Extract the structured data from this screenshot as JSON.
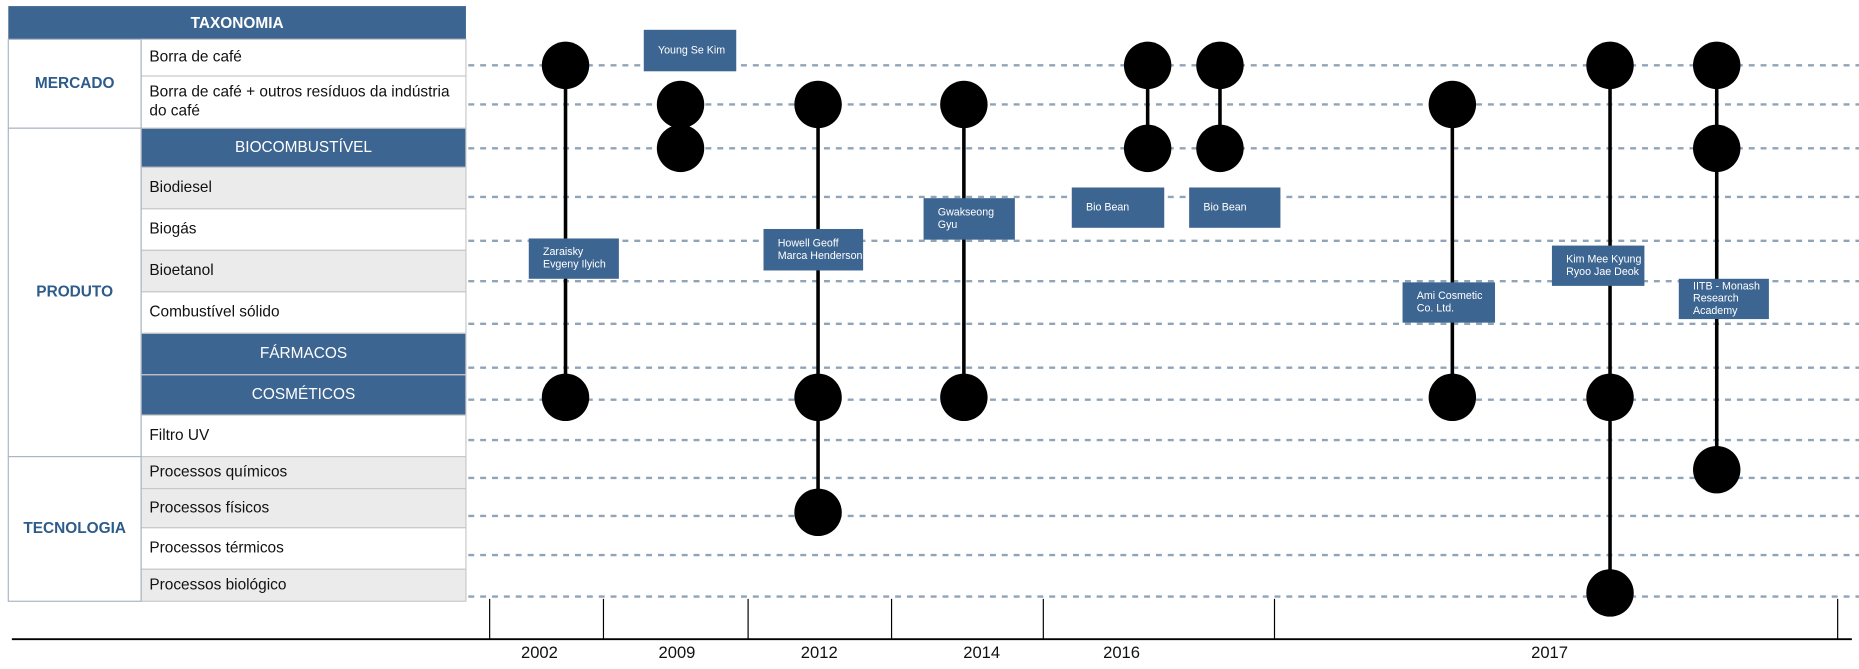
{
  "header": {
    "title": "TAXONOMIA"
  },
  "groups": [
    {
      "label": "MERCADO"
    },
    {
      "label": "PRODUTO"
    },
    {
      "label": "TECNOLOGIA"
    }
  ],
  "rows": [
    {
      "lines": [
        "Borra de café"
      ]
    },
    {
      "lines": [
        "Borra de café + outros resíduos da indústria",
        "do café"
      ]
    },
    {
      "lines": [
        "BIOCOMBUSTÍVEL"
      ]
    },
    {
      "lines": [
        "Biodiesel"
      ]
    },
    {
      "lines": [
        "Biogás"
      ]
    },
    {
      "lines": [
        "Bioetanol"
      ]
    },
    {
      "lines": [
        "Combustível sólido"
      ]
    },
    {
      "lines": [
        "FÁRMACOS"
      ]
    },
    {
      "lines": [
        "COSMÉTICOS"
      ]
    },
    {
      "lines": [
        "Filtro UV"
      ]
    },
    {
      "lines": [
        "Processos químicos"
      ]
    },
    {
      "lines": [
        "Processos físicos"
      ]
    },
    {
      "lines": [
        "Processos térmicos"
      ]
    },
    {
      "lines": [
        "Processos biológico"
      ]
    }
  ],
  "entries": [
    {
      "lines": [
        "Zaraisky",
        "Evgeny Ilyich"
      ],
      "rows": [
        0,
        8
      ]
    },
    {
      "lines": [
        "Young Se Kim"
      ],
      "rows": [
        1,
        2
      ]
    },
    {
      "lines": [
        "Howell Geoff",
        "Marca Henderson"
      ],
      "rows": [
        1,
        8,
        11
      ]
    },
    {
      "lines": [
        "Gwakseong",
        "Gyu"
      ],
      "rows": [
        1,
        8
      ]
    },
    {
      "lines": [
        "Bio Bean"
      ],
      "rows": [
        0,
        2
      ]
    },
    {
      "lines": [
        "Bio Bean"
      ],
      "rows": [
        0,
        2
      ]
    },
    {
      "lines": [
        "Ami Cosmetic",
        "Co. Ltd."
      ],
      "rows": [
        1,
        8
      ]
    },
    {
      "lines": [
        "Kim Mee Kyung",
        "Ryoo Jae Deok"
      ],
      "rows": [
        0,
        8,
        13
      ]
    },
    {
      "lines": [
        "IITB - Monash",
        "Research",
        "Academy"
      ],
      "rows": [
        0,
        2,
        10
      ]
    }
  ],
  "years": [
    "2002",
    "2009",
    "2012",
    "2014",
    "2016",
    "2017"
  ]
}
